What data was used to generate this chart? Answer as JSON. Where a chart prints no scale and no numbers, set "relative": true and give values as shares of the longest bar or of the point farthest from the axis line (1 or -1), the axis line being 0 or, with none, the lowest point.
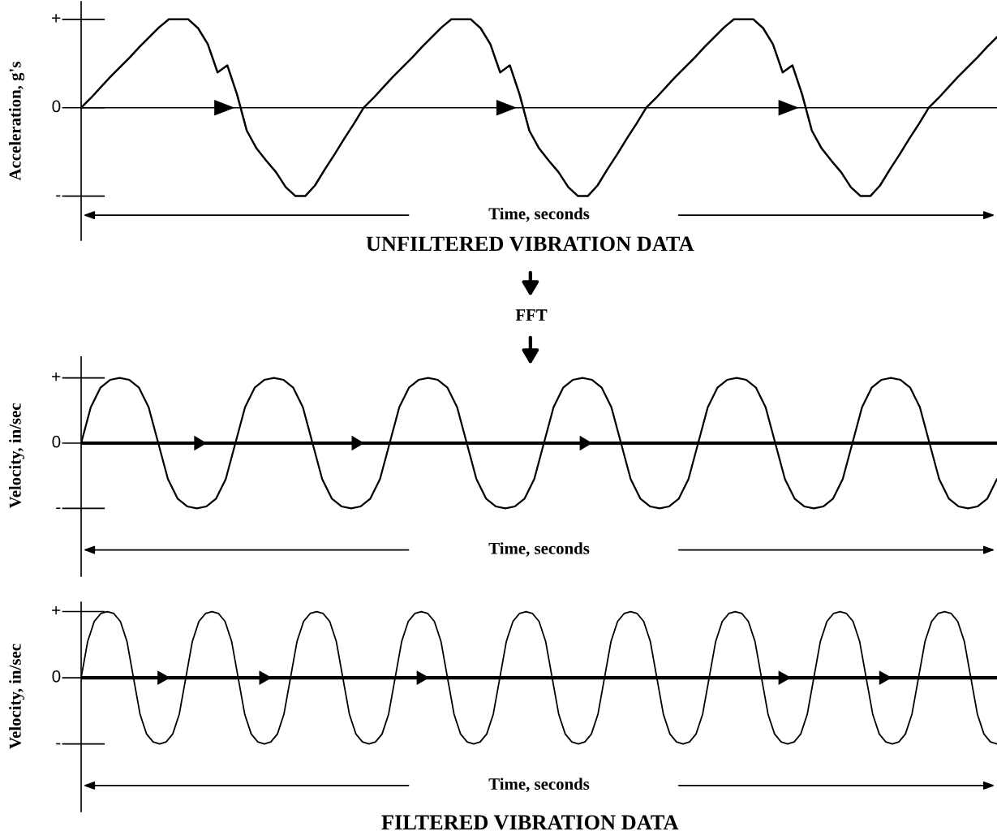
{
  "chart_data": [
    {
      "type": "line",
      "title": "UNFILTERED VIBRATION DATA",
      "xlabel": "Time, seconds",
      "ylabel": "Acceleration, g's",
      "color": "#000000",
      "relative": true,
      "annotations": [
        "+",
        "0",
        "-"
      ],
      "ref_lines": [
        {
          "axis": "y",
          "value": 0,
          "color": "#000000"
        }
      ],
      "categories": [
        null,
        null,
        null,
        null,
        null,
        null,
        null,
        null,
        null,
        null,
        null,
        null,
        null,
        null,
        null,
        null,
        null,
        null,
        null,
        null,
        null,
        null,
        null,
        null,
        null,
        null,
        null,
        null,
        null,
        null,
        null,
        null,
        null,
        null,
        null,
        null,
        null,
        null,
        null,
        null,
        null,
        null,
        null,
        null,
        null,
        null,
        null,
        null,
        null,
        null,
        null,
        null,
        null,
        null,
        null,
        null,
        null,
        null,
        null,
        null,
        null,
        null,
        null,
        null,
        null,
        null,
        null,
        null,
        null,
        null,
        null,
        null,
        null,
        null,
        null,
        null,
        null,
        null,
        null,
        null,
        null,
        null,
        null,
        null,
        null,
        null,
        null,
        null,
        null,
        null,
        null,
        null,
        null,
        null,
        null
      ],
      "values": [
        0,
        0.11,
        0.23,
        0.35,
        0.46,
        0.57,
        0.69,
        0.8,
        0.91,
        1,
        1,
        1,
        0.9,
        0.72,
        0.4,
        0.48,
        0.15,
        -0.26,
        -0.46,
        -0.6,
        -0.73,
        -0.9,
        -1,
        -1,
        -0.88,
        -0.7,
        -0.53,
        -0.35,
        -0.18,
        0,
        0.11,
        0.23,
        0.35,
        0.46,
        0.57,
        0.69,
        0.8,
        0.91,
        1,
        1,
        1,
        0.9,
        0.72,
        0.4,
        0.48,
        0.15,
        -0.26,
        -0.46,
        -0.6,
        -0.73,
        -0.9,
        -1,
        -1,
        -0.88,
        -0.7,
        -0.53,
        -0.35,
        -0.18,
        0,
        0.11,
        0.23,
        0.35,
        0.46,
        0.57,
        0.69,
        0.8,
        0.91,
        1,
        1,
        1,
        0.9,
        0.72,
        0.4,
        0.48,
        0.15,
        -0.26,
        -0.46,
        -0.6,
        -0.73,
        -0.9,
        -1,
        -1,
        -0.88,
        -0.7,
        -0.53,
        -0.35,
        -0.18,
        0,
        0.11,
        0.23,
        0.35,
        0.46,
        0.57,
        0.69,
        0.8
      ]
    },
    {
      "type": "line",
      "xlabel": "Time, seconds",
      "ylabel": "Velocity, in/sec",
      "color": "#000000",
      "relative": true,
      "annotations": [
        "FFT",
        "+",
        "0",
        "-"
      ],
      "ref_lines": [
        {
          "axis": "y",
          "value": 0,
          "color": "#000000"
        }
      ],
      "categories": [
        null,
        null,
        null,
        null,
        null,
        null,
        null,
        null,
        null,
        null,
        null,
        null,
        null,
        null,
        null,
        null,
        null,
        null,
        null,
        null,
        null,
        null,
        null,
        null,
        null,
        null,
        null,
        null,
        null,
        null,
        null,
        null,
        null,
        null,
        null,
        null,
        null,
        null,
        null,
        null,
        null,
        null,
        null,
        null,
        null,
        null,
        null,
        null,
        null,
        null,
        null,
        null,
        null,
        null,
        null,
        null,
        null,
        null,
        null,
        null,
        null,
        null,
        null,
        null,
        null,
        null,
        null,
        null,
        null,
        null,
        null,
        null,
        null,
        null,
        null,
        null,
        null,
        null,
        null,
        null,
        null,
        null,
        null,
        null,
        null,
        null,
        null,
        null,
        null,
        null,
        null,
        null,
        null,
        null,
        null,
        null
      ],
      "values": [
        0,
        0.55,
        0.85,
        0.97,
        1,
        0.97,
        0.85,
        0.55,
        0,
        -0.55,
        -0.85,
        -0.97,
        -1,
        -0.97,
        -0.85,
        -0.55,
        0,
        0.55,
        0.85,
        0.97,
        1,
        0.97,
        0.85,
        0.55,
        0,
        -0.55,
        -0.85,
        -0.97,
        -1,
        -0.97,
        -0.85,
        -0.55,
        0,
        0.55,
        0.85,
        0.97,
        1,
        0.97,
        0.85,
        0.55,
        0,
        -0.55,
        -0.85,
        -0.97,
        -1,
        -0.97,
        -0.85,
        -0.55,
        0,
        0.55,
        0.85,
        0.97,
        1,
        0.97,
        0.85,
        0.55,
        0,
        -0.55,
        -0.85,
        -0.97,
        -1,
        -0.97,
        -0.85,
        -0.55,
        0,
        0.55,
        0.85,
        0.97,
        1,
        0.97,
        0.85,
        0.55,
        0,
        -0.55,
        -0.85,
        -0.97,
        -1,
        -0.97,
        -0.85,
        -0.55,
        0,
        0.55,
        0.85,
        0.97,
        1,
        0.97,
        0.85,
        0.55,
        0,
        -0.55,
        -0.85,
        -0.97,
        -1,
        -0.97,
        -0.85,
        -0.55
      ]
    },
    {
      "type": "line",
      "title": "FILTERED VIBRATION DATA",
      "xlabel": "Time, seconds",
      "ylabel": "Velocity, in/sec",
      "color": "#000000",
      "relative": true,
      "annotations": [
        "+",
        "0",
        "-"
      ],
      "ref_lines": [
        {
          "axis": "y",
          "value": 0,
          "color": "#000000"
        }
      ],
      "categories": [
        null,
        null,
        null,
        null,
        null,
        null,
        null,
        null,
        null,
        null,
        null,
        null,
        null,
        null,
        null,
        null,
        null,
        null,
        null,
        null,
        null,
        null,
        null,
        null,
        null,
        null,
        null,
        null,
        null,
        null,
        null,
        null,
        null,
        null,
        null,
        null,
        null,
        null,
        null,
        null,
        null,
        null,
        null,
        null,
        null,
        null,
        null,
        null,
        null,
        null,
        null,
        null,
        null,
        null,
        null,
        null,
        null,
        null,
        null,
        null,
        null,
        null,
        null,
        null,
        null,
        null,
        null,
        null,
        null,
        null,
        null,
        null,
        null,
        null,
        null,
        null,
        null,
        null,
        null,
        null,
        null,
        null,
        null,
        null,
        null,
        null,
        null,
        null,
        null,
        null,
        null,
        null,
        null,
        null,
        null,
        null,
        null,
        null,
        null,
        null,
        null,
        null,
        null,
        null,
        null,
        null,
        null,
        null,
        null,
        null,
        null,
        null,
        null,
        null,
        null,
        null,
        null,
        null,
        null,
        null,
        null,
        null,
        null,
        null,
        null,
        null,
        null,
        null,
        null,
        null,
        null,
        null,
        null,
        null,
        null,
        null,
        null,
        null,
        null,
        null,
        null
      ],
      "values": [
        0,
        0.55,
        0.85,
        0.97,
        1,
        0.97,
        0.85,
        0.55,
        0,
        -0.55,
        -0.85,
        -0.97,
        -1,
        -0.97,
        -0.85,
        -0.55,
        0,
        0.55,
        0.85,
        0.97,
        1,
        0.97,
        0.85,
        0.55,
        0,
        -0.55,
        -0.85,
        -0.97,
        -1,
        -0.97,
        -0.85,
        -0.55,
        0,
        0.55,
        0.85,
        0.97,
        1,
        0.97,
        0.85,
        0.55,
        0,
        -0.55,
        -0.85,
        -0.97,
        -1,
        -0.97,
        -0.85,
        -0.55,
        0,
        0.55,
        0.85,
        0.97,
        1,
        0.97,
        0.85,
        0.55,
        0,
        -0.55,
        -0.85,
        -0.97,
        -1,
        -0.97,
        -0.85,
        -0.55,
        0,
        0.55,
        0.85,
        0.97,
        1,
        0.97,
        0.85,
        0.55,
        0,
        -0.55,
        -0.85,
        -0.97,
        -1,
        -0.97,
        -0.85,
        -0.55,
        0,
        0.55,
        0.85,
        0.97,
        1,
        0.97,
        0.85,
        0.55,
        0,
        -0.55,
        -0.85,
        -0.97,
        -1,
        -0.97,
        -0.85,
        -0.55,
        0,
        0.55,
        0.85,
        0.97,
        1,
        0.97,
        0.85,
        0.55,
        0,
        -0.55,
        -0.85,
        -0.97,
        -1,
        -0.97,
        -0.85,
        -0.55,
        0,
        0.55,
        0.85,
        0.97,
        1,
        0.97,
        0.85,
        0.55,
        0,
        -0.55,
        -0.85,
        -0.97,
        -1,
        -0.97,
        -0.85,
        -0.55,
        0,
        0.55,
        0.85,
        0.97,
        1,
        0.97,
        0.85,
        0.55,
        0,
        -0.55,
        -0.85,
        -0.97,
        -1
      ]
    }
  ]
}
